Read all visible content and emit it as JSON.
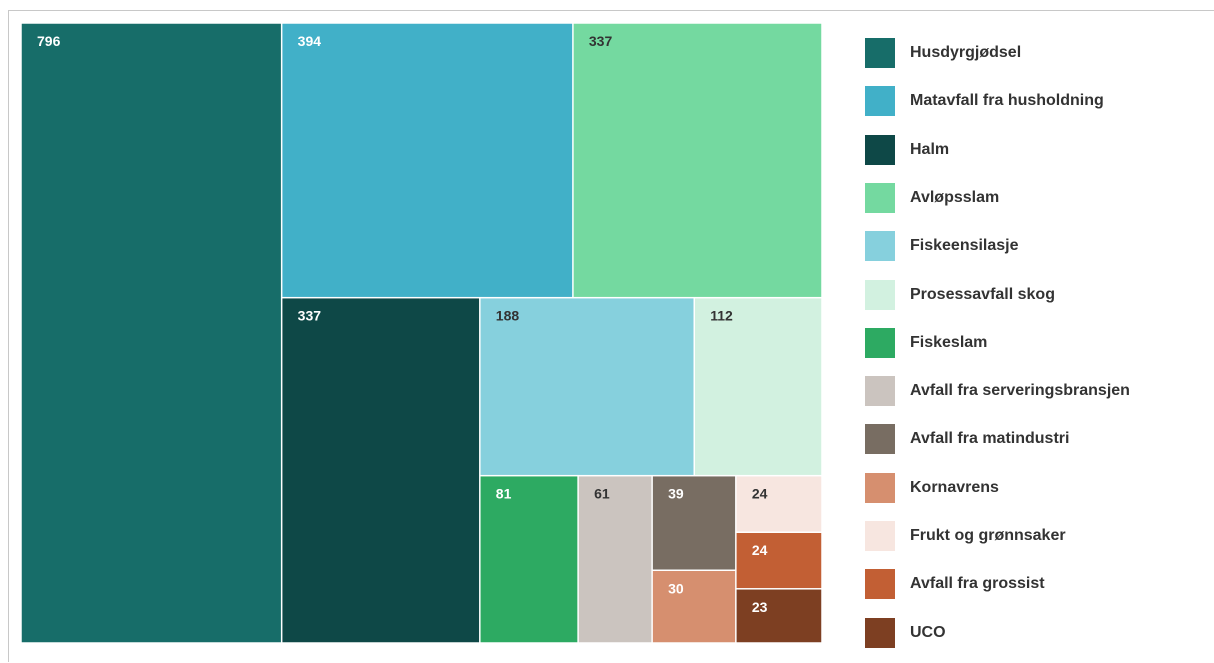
{
  "chart_data": {
    "type": "treemap",
    "items": [
      {
        "name": "Husdyrgjødsel",
        "value": 796,
        "color": "#176d69",
        "label_color": "#ffffff"
      },
      {
        "name": "Matavfall fra husholdning",
        "value": 394,
        "color": "#41b0c8",
        "label_color": "#ffffff"
      },
      {
        "name": "Halm",
        "value": 337,
        "color": "#0e4847",
        "label_color": "#ffffff"
      },
      {
        "name": "Avløpsslam",
        "value": 337,
        "color": "#74d9a0",
        "label_color": "#333333"
      },
      {
        "name": "Fiskeensilasje",
        "value": 188,
        "color": "#86d0dd",
        "label_color": "#333333"
      },
      {
        "name": "Prosessavfall skog",
        "value": 112,
        "color": "#d2f1e0",
        "label_color": "#333333"
      },
      {
        "name": "Fiskeslam",
        "value": 81,
        "color": "#2daa62",
        "label_color": "#ffffff"
      },
      {
        "name": "Avfall fra serveringsbransjen",
        "value": 61,
        "color": "#cbc4bf",
        "label_color": "#333333"
      },
      {
        "name": "Avfall fra matindustri",
        "value": 39,
        "color": "#786d62",
        "label_color": "#ffffff"
      },
      {
        "name": "Kornavrens",
        "value": 30,
        "color": "#d68f6f",
        "label_color": "#ffffff"
      },
      {
        "name": "Frukt og grønnsaker",
        "value": 24,
        "color": "#f7e6e0",
        "label_color": "#333333"
      },
      {
        "name": "Avfall fra grossist",
        "value": 24,
        "color": "#c25f34",
        "label_color": "#ffffff"
      },
      {
        "name": "UCO",
        "value": 23,
        "color": "#7d3f22",
        "label_color": "#ffffff"
      }
    ],
    "legend_position": "right"
  }
}
